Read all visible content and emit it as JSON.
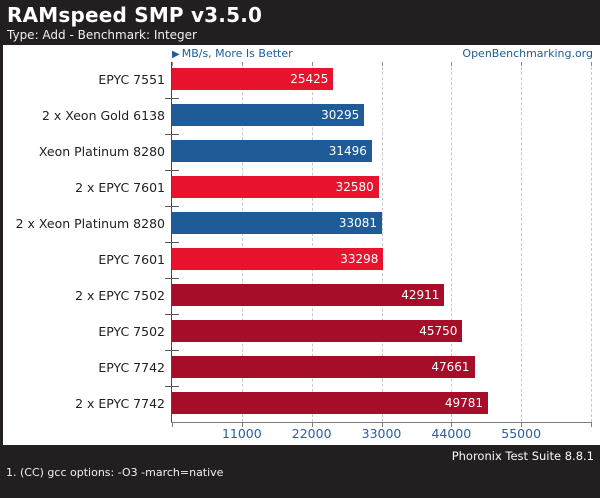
{
  "header": {
    "title": "RAMspeed SMP v3.5.0",
    "subtitle": "Type: Add - Benchmark: Integer"
  },
  "meta": {
    "arrow_icon": "▶",
    "unit_note": "MB/s, More Is Better",
    "site": "OpenBenchmarking.org"
  },
  "chart_data": {
    "type": "bar",
    "orientation": "horizontal",
    "title": "RAMspeed SMP v3.5.0",
    "subtitle": "Type: Add - Benchmark: Integer",
    "unit": "MB/s",
    "more_is_better": true,
    "categories": [
      "EPYC 7551",
      "2 x Xeon Gold 6138",
      "Xeon Platinum 8280",
      "2 x EPYC 7601",
      "2 x Xeon Platinum 8280",
      "EPYC 7601",
      "2 x EPYC 7502",
      "EPYC 7502",
      "EPYC 7742",
      "2 x EPYC 7742"
    ],
    "values": [
      25425,
      30295,
      31496,
      32580,
      33081,
      33298,
      42911,
      45750,
      47661,
      49781
    ],
    "bar_colors": [
      "#e8132e",
      "#1f5c97",
      "#1f5c97",
      "#e8132e",
      "#1f5c97",
      "#e8132e",
      "#a60d29",
      "#a60d29",
      "#a60d29",
      "#a60d29"
    ],
    "xticks": [
      11000,
      22000,
      33000,
      44000,
      55000
    ],
    "xlim": [
      0,
      66000
    ],
    "grid": "dashed-vertical",
    "value_labels": "inside-end",
    "value_label_color": "#ffffff"
  },
  "colors": {
    "header_bg": "#231f20",
    "accent_blue": "#1b5c9b",
    "tick_label_blue": "#2b5f9e",
    "bright_red": "#e8132e",
    "steel_blue": "#1f5c97",
    "dark_red": "#a60d29"
  },
  "footer": {
    "right": "Phoronix Test Suite 8.8.1",
    "footnote": "1. (CC) gcc options: -O3 -march=native"
  }
}
